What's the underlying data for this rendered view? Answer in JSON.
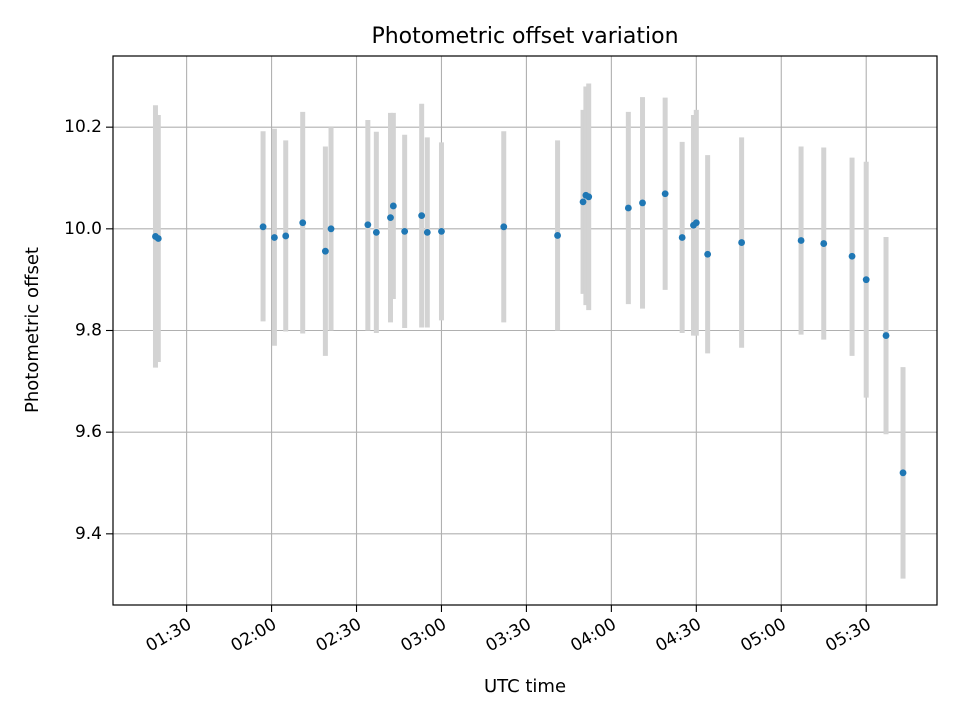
{
  "chart_data": {
    "type": "scatter",
    "title": "Photometric offset variation",
    "xlabel": "UTC time",
    "ylabel": "Photometric offset",
    "x_ticks": [
      "01:30",
      "02:00",
      "02:30",
      "03:00",
      "03:30",
      "04:00",
      "04:30",
      "05:00",
      "05:30"
    ],
    "y_ticks": [
      9.4,
      9.6,
      9.8,
      10.0,
      10.2
    ],
    "xlim": [
      "01:04",
      "05:55"
    ],
    "ylim": [
      9.26,
      10.34
    ],
    "grid": true,
    "point_color": "#1f77b4",
    "errorbar_color": "#d3d3d3",
    "points": [
      {
        "x": "01:19",
        "y": 9.985,
        "lo": 9.727,
        "hi": 10.243
      },
      {
        "x": "01:20",
        "y": 9.981,
        "lo": 9.738,
        "hi": 10.224
      },
      {
        "x": "01:57",
        "y": 10.004,
        "lo": 9.818,
        "hi": 10.192
      },
      {
        "x": "02:01",
        "y": 9.983,
        "lo": 9.77,
        "hi": 10.197
      },
      {
        "x": "02:05",
        "y": 9.986,
        "lo": 9.798,
        "hi": 10.174
      },
      {
        "x": "02:11",
        "y": 10.012,
        "lo": 9.794,
        "hi": 10.23
      },
      {
        "x": "02:19",
        "y": 9.956,
        "lo": 9.75,
        "hi": 10.162
      },
      {
        "x": "02:21",
        "y": 10.0,
        "lo": 9.8,
        "hi": 10.2
      },
      {
        "x": "02:34",
        "y": 10.008,
        "lo": 9.8,
        "hi": 10.214
      },
      {
        "x": "02:37",
        "y": 9.993,
        "lo": 9.795,
        "hi": 10.191
      },
      {
        "x": "02:42",
        "y": 10.022,
        "lo": 9.816,
        "hi": 10.228
      },
      {
        "x": "02:43",
        "y": 10.045,
        "lo": 9.862,
        "hi": 10.228
      },
      {
        "x": "02:47",
        "y": 9.995,
        "lo": 9.805,
        "hi": 10.185
      },
      {
        "x": "02:53",
        "y": 10.026,
        "lo": 9.806,
        "hi": 10.246
      },
      {
        "x": "02:55",
        "y": 9.993,
        "lo": 9.806,
        "hi": 10.18
      },
      {
        "x": "03:00",
        "y": 9.995,
        "lo": 9.82,
        "hi": 10.17
      },
      {
        "x": "03:22",
        "y": 10.004,
        "lo": 9.816,
        "hi": 10.192
      },
      {
        "x": "03:41",
        "y": 9.987,
        "lo": 9.8,
        "hi": 10.174
      },
      {
        "x": "03:50",
        "y": 10.053,
        "lo": 9.872,
        "hi": 10.234
      },
      {
        "x": "03:51",
        "y": 10.066,
        "lo": 9.85,
        "hi": 10.28
      },
      {
        "x": "03:52",
        "y": 10.063,
        "lo": 9.84,
        "hi": 10.286
      },
      {
        "x": "04:06",
        "y": 10.041,
        "lo": 9.852,
        "hi": 10.23
      },
      {
        "x": "04:11",
        "y": 10.051,
        "lo": 9.843,
        "hi": 10.259
      },
      {
        "x": "04:19",
        "y": 10.069,
        "lo": 9.88,
        "hi": 10.258
      },
      {
        "x": "04:25",
        "y": 9.983,
        "lo": 9.795,
        "hi": 10.171
      },
      {
        "x": "04:29",
        "y": 10.007,
        "lo": 9.79,
        "hi": 10.224
      },
      {
        "x": "04:30",
        "y": 10.012,
        "lo": 9.79,
        "hi": 10.234
      },
      {
        "x": "04:34",
        "y": 9.95,
        "lo": 9.755,
        "hi": 10.145
      },
      {
        "x": "04:46",
        "y": 9.973,
        "lo": 9.766,
        "hi": 10.18
      },
      {
        "x": "05:07",
        "y": 9.977,
        "lo": 9.792,
        "hi": 10.162
      },
      {
        "x": "05:15",
        "y": 9.971,
        "lo": 9.782,
        "hi": 10.16
      },
      {
        "x": "05:25",
        "y": 9.946,
        "lo": 9.75,
        "hi": 10.14
      },
      {
        "x": "05:30",
        "y": 9.9,
        "lo": 9.668,
        "hi": 10.132
      },
      {
        "x": "05:37",
        "y": 9.79,
        "lo": 9.596,
        "hi": 9.984
      },
      {
        "x": "05:43",
        "y": 9.52,
        "lo": 9.312,
        "hi": 9.728
      }
    ]
  }
}
